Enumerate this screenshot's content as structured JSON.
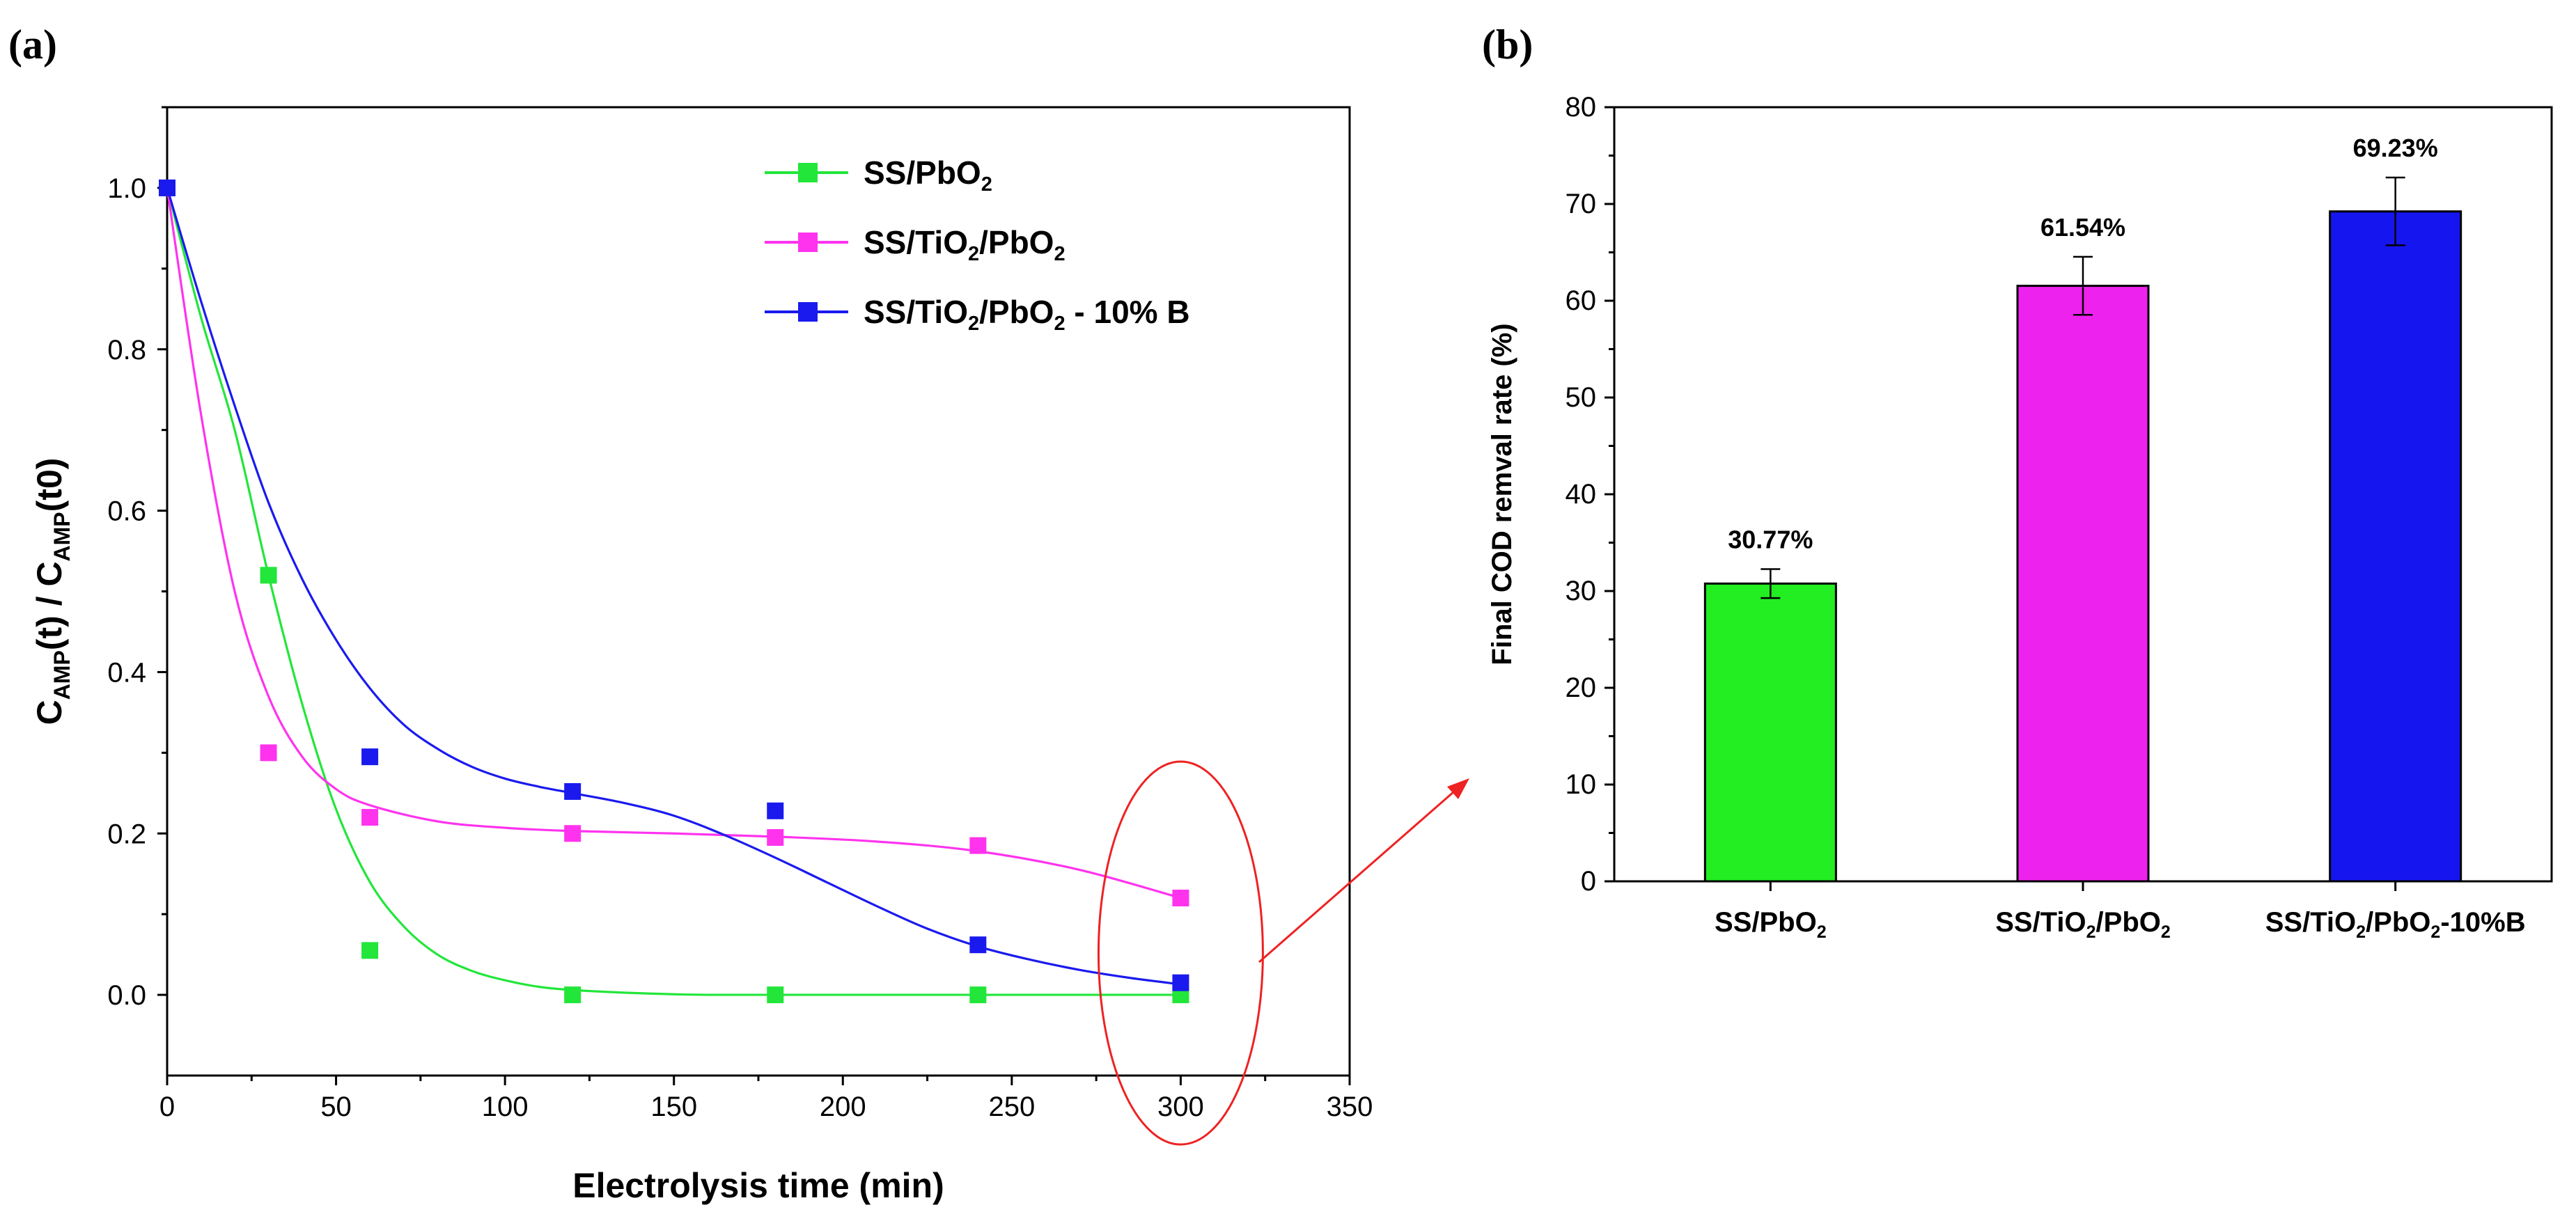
{
  "chart_data": [
    {
      "panel": "(a)",
      "type": "scatter",
      "xlabel": "Electrolysis time (min)",
      "ylabel": {
        "main": "C",
        "sub1": "AMP",
        "mid": "(t) / C",
        "sub2": "AMP",
        "end": "(t0)"
      },
      "xlim": [
        0,
        350
      ],
      "ylim": [
        -0.1,
        1.1
      ],
      "xticks": [
        0,
        50,
        100,
        150,
        200,
        250,
        300,
        350
      ],
      "yticks": [
        0.0,
        0.2,
        0.4,
        0.6,
        0.8,
        1.0
      ],
      "ytick_labels": [
        "0.0",
        "0.2",
        "0.4",
        "0.6",
        "0.8",
        "1.0"
      ],
      "series": [
        {
          "name": "SS/PbO2",
          "legend": {
            "pre": "SS/PbO",
            "sub": "2",
            "post": ""
          },
          "color": "#22e63a",
          "x": [
            0,
            30,
            60,
            120,
            180,
            240,
            300
          ],
          "values": [
            1.0,
            0.52,
            0.055,
            0.0,
            0.0,
            0.0,
            0.0
          ],
          "fit": [
            [
              0,
              1.0
            ],
            [
              10,
              0.84
            ],
            [
              20,
              0.7
            ],
            [
              30,
              0.52
            ],
            [
              40,
              0.36
            ],
            [
              50,
              0.23
            ],
            [
              60,
              0.14
            ],
            [
              70,
              0.085
            ],
            [
              80,
              0.05
            ],
            [
              90,
              0.03
            ],
            [
              100,
              0.018
            ],
            [
              110,
              0.01
            ],
            [
              120,
              0.006
            ],
            [
              140,
              0.002
            ],
            [
              160,
              0.0
            ],
            [
              200,
              0.0
            ],
            [
              250,
              0.0
            ],
            [
              300,
              0.0
            ]
          ]
        },
        {
          "name": "SS/TiO2/PbO2",
          "legend": {
            "pre": "SS/TiO",
            "sub": "2",
            "mid": "/PbO",
            "sub2": "2",
            "post": ""
          },
          "color": "#ff33ee",
          "x": [
            0,
            30,
            60,
            120,
            180,
            240,
            300
          ],
          "values": [
            1.0,
            0.3,
            0.22,
            0.2,
            0.195,
            0.185,
            0.12
          ],
          "fit": [
            [
              0,
              1.0
            ],
            [
              10,
              0.72
            ],
            [
              20,
              0.5
            ],
            [
              30,
              0.37
            ],
            [
              40,
              0.295
            ],
            [
              50,
              0.255
            ],
            [
              60,
              0.235
            ],
            [
              80,
              0.215
            ],
            [
              100,
              0.207
            ],
            [
              120,
              0.203
            ],
            [
              150,
              0.2
            ],
            [
              180,
              0.196
            ],
            [
              210,
              0.19
            ],
            [
              240,
              0.178
            ],
            [
              270,
              0.155
            ],
            [
              300,
              0.12
            ]
          ]
        },
        {
          "name": "SS/TiO2/PbO2 - 10% B",
          "legend": {
            "pre": "SS/TiO",
            "sub": "2",
            "mid": "/PbO",
            "sub2": "2",
            "post": " - 10% B"
          },
          "color": "#1a1aee",
          "x": [
            0,
            60,
            120,
            180,
            240,
            300
          ],
          "values": [
            1.0,
            0.295,
            0.252,
            0.228,
            0.062,
            0.015
          ],
          "fit": [
            [
              0,
              1.0
            ],
            [
              10,
              0.86
            ],
            [
              20,
              0.73
            ],
            [
              30,
              0.61
            ],
            [
              40,
              0.515
            ],
            [
              50,
              0.44
            ],
            [
              60,
              0.38
            ],
            [
              70,
              0.335
            ],
            [
              80,
              0.305
            ],
            [
              90,
              0.283
            ],
            [
              100,
              0.268
            ],
            [
              110,
              0.258
            ],
            [
              120,
              0.25
            ],
            [
              135,
              0.238
            ],
            [
              150,
              0.222
            ],
            [
              165,
              0.198
            ],
            [
              180,
              0.17
            ],
            [
              195,
              0.14
            ],
            [
              210,
              0.11
            ],
            [
              225,
              0.082
            ],
            [
              240,
              0.06
            ],
            [
              255,
              0.044
            ],
            [
              270,
              0.031
            ],
            [
              285,
              0.021
            ],
            [
              300,
              0.013
            ]
          ]
        }
      ]
    },
    {
      "panel": "(b)",
      "type": "bar",
      "ylabel": "Final COD remval rate (%)",
      "ylim": [
        0,
        80
      ],
      "yticks": [
        0,
        10,
        20,
        30,
        40,
        50,
        60,
        70,
        80
      ],
      "categories": [
        "SS/PbO2",
        "SS/TiO2/PbO2",
        "SS/TiO2/PbO2-10%B"
      ],
      "category_labels": [
        {
          "pre": "SS/PbO",
          "sub": "2",
          "mid": "",
          "sub2": "",
          "post": ""
        },
        {
          "pre": "SS/TiO",
          "sub": "2",
          "mid": "/PbO",
          "sub2": "2",
          "post": ""
        },
        {
          "pre": "SS/TiO",
          "sub": "2",
          "mid": "/PbO",
          "sub2": "2",
          "post": "-10%B"
        }
      ],
      "values": [
        30.77,
        61.54,
        69.23
      ],
      "value_labels": [
        "30.77%",
        "61.54%",
        "69.23%"
      ],
      "errors": [
        1.5,
        3.0,
        3.5
      ],
      "colors": [
        "#22ee22",
        "#ee22ee",
        "#1515f0"
      ]
    }
  ],
  "annotation": {
    "highlight_x": 300,
    "color": "#ee2222"
  }
}
